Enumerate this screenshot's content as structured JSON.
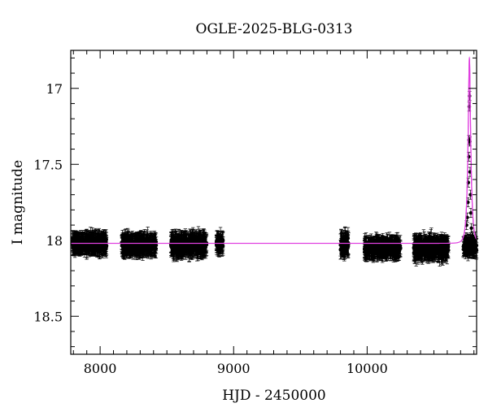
{
  "chart_data": {
    "type": "scatter",
    "title": "OGLE-2025-BLG-0313",
    "xlabel": "HJD - 2450000",
    "ylabel": "I magnitude",
    "xlim": [
      7780,
      10820
    ],
    "ylim": [
      18.75,
      16.75
    ],
    "y_inverted": true,
    "x_ticks": [
      8000,
      9000,
      10000
    ],
    "y_ticks": [
      17,
      17.5,
      18,
      18.5
    ],
    "x_minor_step": 100,
    "y_minor_step": 0.1,
    "grid": false,
    "colors": {
      "points": "#000000",
      "model": "#e040e0"
    },
    "baseline_mag": 18.02,
    "observing_seasons": [
      {
        "start": 7790,
        "end": 8050,
        "mean_mag": 18.02,
        "scatter": 0.04,
        "error": 0.055
      },
      {
        "start": 8160,
        "end": 8420,
        "mean_mag": 18.03,
        "scatter": 0.04,
        "error": 0.055
      },
      {
        "start": 8530,
        "end": 8800,
        "mean_mag": 18.03,
        "scatter": 0.045,
        "error": 0.06
      },
      {
        "start": 8870,
        "end": 8920,
        "mean_mag": 18.02,
        "scatter": 0.04,
        "error": 0.05
      },
      {
        "start": 9800,
        "end": 9860,
        "mean_mag": 18.03,
        "scatter": 0.05,
        "error": 0.06
      },
      {
        "start": 9980,
        "end": 10250,
        "mean_mag": 18.05,
        "scatter": 0.04,
        "error": 0.055
      },
      {
        "start": 10350,
        "end": 10610,
        "mean_mag": 18.05,
        "scatter": 0.045,
        "error": 0.06
      },
      {
        "start": 10720,
        "end": 10820,
        "mean_mag": 18.04,
        "scatter": 0.04,
        "error": 0.05
      }
    ],
    "event_points": [
      {
        "x": 10740,
        "y": 17.98
      },
      {
        "x": 10745,
        "y": 17.9
      },
      {
        "x": 10750,
        "y": 17.85
      },
      {
        "x": 10755,
        "y": 17.75
      },
      {
        "x": 10758,
        "y": 17.62
      },
      {
        "x": 10761,
        "y": 17.45
      },
      {
        "x": 10763,
        "y": 17.34
      },
      {
        "x": 10765,
        "y": 17.12
      },
      {
        "x": 10767,
        "y": 17.05
      },
      {
        "x": 10769,
        "y": 17.35
      },
      {
        "x": 10771,
        "y": 17.55
      },
      {
        "x": 10774,
        "y": 17.7
      },
      {
        "x": 10777,
        "y": 17.82
      },
      {
        "x": 10781,
        "y": 17.92
      },
      {
        "x": 10786,
        "y": 17.97
      },
      {
        "x": 10792,
        "y": 17.98
      }
    ],
    "model": {
      "t0": 10766,
      "peak_mag": 16.8,
      "baseline_mag": 18.02
    }
  }
}
